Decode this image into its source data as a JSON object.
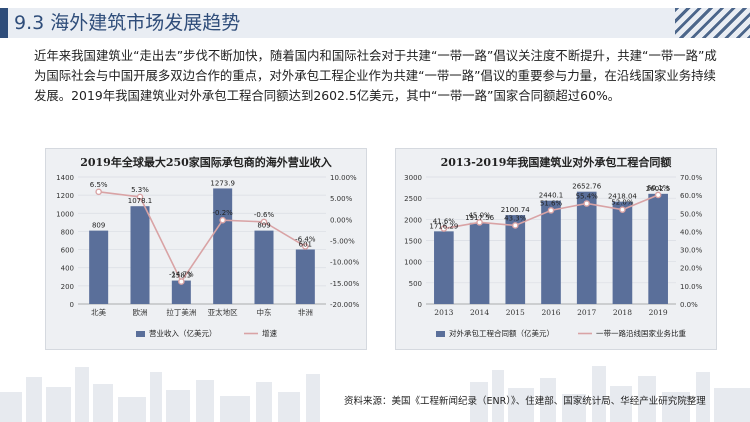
{
  "header": {
    "title": "9.3 海外建筑市场发展趋势"
  },
  "intro": "近年来我国建筑业“走出去”步伐不断加快，随着国内和国际社会对于共建“一带一路”倡议关注度不断提升，共建“一带一路”成为国际社会与中国开展多双边合作的重点，对外承包工程企业作为共建“一带一路”倡议的重要参与力量，在沿线国家业务持续发展。2019年我国建筑业对外承包工程合同额达到2602.5亿美元，其中“一带一路”国家合同额超过60%。",
  "source": "资料来源：美国《工程新闻纪录（ENR）》、住建部、国家统计局、华经产业研究院整理",
  "colors": {
    "bar": "#5a6f9a",
    "line": "#d9a3a5",
    "panel_bg": "#eef0f3",
    "title_color": "#2f4d7a"
  },
  "chart_data": [
    {
      "type": "bar+line",
      "title": "2019年全球最大250家国际承包商的海外营业收入",
      "categories": [
        "北美",
        "欧洲",
        "拉丁美洲",
        "亚太地区",
        "中东",
        "非洲"
      ],
      "y_left": {
        "ylim": [
          0,
          1400
        ],
        "ticks": [
          0,
          200,
          400,
          600,
          800,
          1000,
          1200,
          1400
        ]
      },
      "y_right": {
        "ylim": [
          -20,
          10
        ],
        "ticks": [
          "-20.00%",
          "-15.00%",
          "-10.00%",
          "-5.00%",
          "0.00%",
          "5.00%",
          "10.00%"
        ]
      },
      "series": [
        {
          "name": "营业收入（亿美元）",
          "kind": "bar",
          "values": [
            809,
            1078.1,
            258.3,
            1273.9,
            809,
            601
          ],
          "labels": [
            "809",
            "1078.1",
            "258.3",
            "1273.9",
            "809",
            "601"
          ]
        },
        {
          "name": "增速",
          "kind": "line",
          "values": [
            6.5,
            5.3,
            -14.7,
            -0.2,
            -0.6,
            -6.4
          ],
          "labels": [
            "6.5%",
            "5.3%",
            "-14.7%",
            "-0.2%",
            "-0.6%",
            "-6.4%"
          ]
        }
      ],
      "legend": "bottom"
    },
    {
      "type": "bar+line",
      "title": "2013-2019年我国建筑业对外承包工程合同额",
      "categories": [
        "2013",
        "2014",
        "2015",
        "2016",
        "2017",
        "2018",
        "2019"
      ],
      "y_left": {
        "ylim": [
          0,
          3000
        ],
        "ticks": [
          0,
          500,
          1000,
          1500,
          2000,
          2500,
          3000
        ]
      },
      "y_right": {
        "ylim": [
          0,
          70
        ],
        "ticks": [
          "0.0%",
          "10.0%",
          "20.0%",
          "30.0%",
          "40.0%",
          "50.0%",
          "60.0%",
          "70.0%"
        ]
      },
      "series": [
        {
          "name": "对外承包工程合同额（亿美元）",
          "kind": "bar",
          "values": [
            1716.29,
            1917.56,
            2100.74,
            2440.1,
            2652.76,
            2418.04,
            2602.5
          ],
          "labels": [
            "1716.29",
            "1917.56",
            "2100.74",
            "2440.1",
            "2652.76",
            "2418.04",
            "2602.5"
          ]
        },
        {
          "name": "一带一路沿线国家业务比重",
          "kind": "line",
          "values": [
            41.6,
            45.0,
            43.3,
            51.6,
            55.4,
            52.0,
            60.1
          ],
          "labels": [
            "41.6%",
            "45.0%",
            "43.3%",
            "51.6%",
            "55.4%",
            "52.0%",
            "60.1%"
          ]
        }
      ],
      "legend": "bottom"
    }
  ]
}
